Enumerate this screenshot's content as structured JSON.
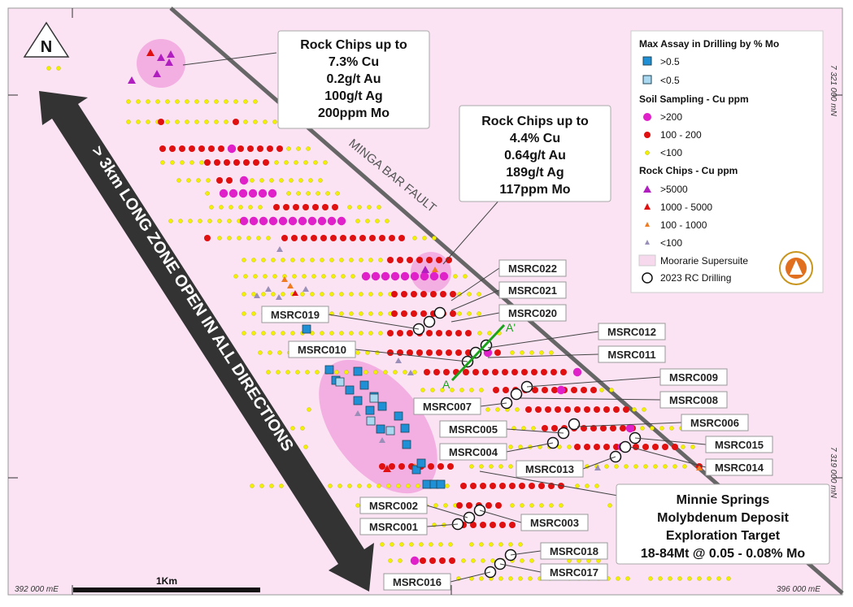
{
  "north_arrow": {
    "label": "N"
  },
  "callouts": {
    "rock1": {
      "lines": [
        "Rock Chips up to",
        "7.3% Cu",
        "0.2g/t Au",
        "100g/t Ag",
        "200ppm Mo"
      ]
    },
    "rock2": {
      "lines": [
        "Rock Chips up to",
        "4.4% Cu",
        "0.64g/t Au",
        "189g/t Ag",
        "117ppm Mo"
      ]
    },
    "target": {
      "lines": [
        "Minnie Springs",
        "Molybdenum Deposit",
        "Exploration Target",
        "18-84Mt @ 0.05 - 0.08% Mo"
      ]
    }
  },
  "fault_label": "MINGA BAR FAULT",
  "zone_label": "> 3km LONG ZONE OPEN IN ALL DIRECTIONS",
  "coords": {
    "n_top": "7 321 000 mN",
    "n_bottom": "7 319 000 mN",
    "e_left": "392 000 mE",
    "e_right": "396 000 mE"
  },
  "scale_bar": {
    "label": "1Km"
  },
  "drill_holes": [
    "MSRC022",
    "MSRC021",
    "MSRC020",
    "MSRC019",
    "MSRC012",
    "MSRC010",
    "MSRC011",
    "MSRC009",
    "MSRC008",
    "MSRC007",
    "MSRC006",
    "MSRC005",
    "MSRC015",
    "MSRC004",
    "MSRC013",
    "MSRC014",
    "MSRC002",
    "MSRC003",
    "MSRC001",
    "MSRC018",
    "MSRC017",
    "MSRC016"
  ],
  "section": {
    "a": "A",
    "a_prime": "A'"
  },
  "legend": {
    "mo_title": "Max Assay in Drilling by % Mo",
    "mo_items": [
      {
        "label": ">0.5",
        "color": "#1f8fd6"
      },
      {
        "label": "<0.5",
        "color": "#a9d8f0"
      }
    ],
    "soil_title": "Soil Sampling - Cu ppm",
    "soil_items": [
      {
        "label": ">200",
        "color": "#e020c8"
      },
      {
        "label": "100 - 200",
        "color": "#e01010"
      },
      {
        "label": "<100",
        "color": "#f2f200"
      }
    ],
    "rock_title": "Rock Chips - Cu ppm",
    "rock_items": [
      {
        "label": ">5000",
        "color": "#b01ec0"
      },
      {
        "label": "1000 - 5000",
        "color": "#e01010"
      },
      {
        "label": "100 - 1000",
        "color": "#f07a20"
      },
      {
        "label": "<100",
        "color": "#9a8fb8"
      }
    ],
    "supersuite_label": "Moorarie Supersuite",
    "drill_label": "2023 RC Drilling"
  },
  "colors": {
    "background": "#fbe3f3",
    "fault": "#555555",
    "anomaly": "#f2a6de"
  }
}
